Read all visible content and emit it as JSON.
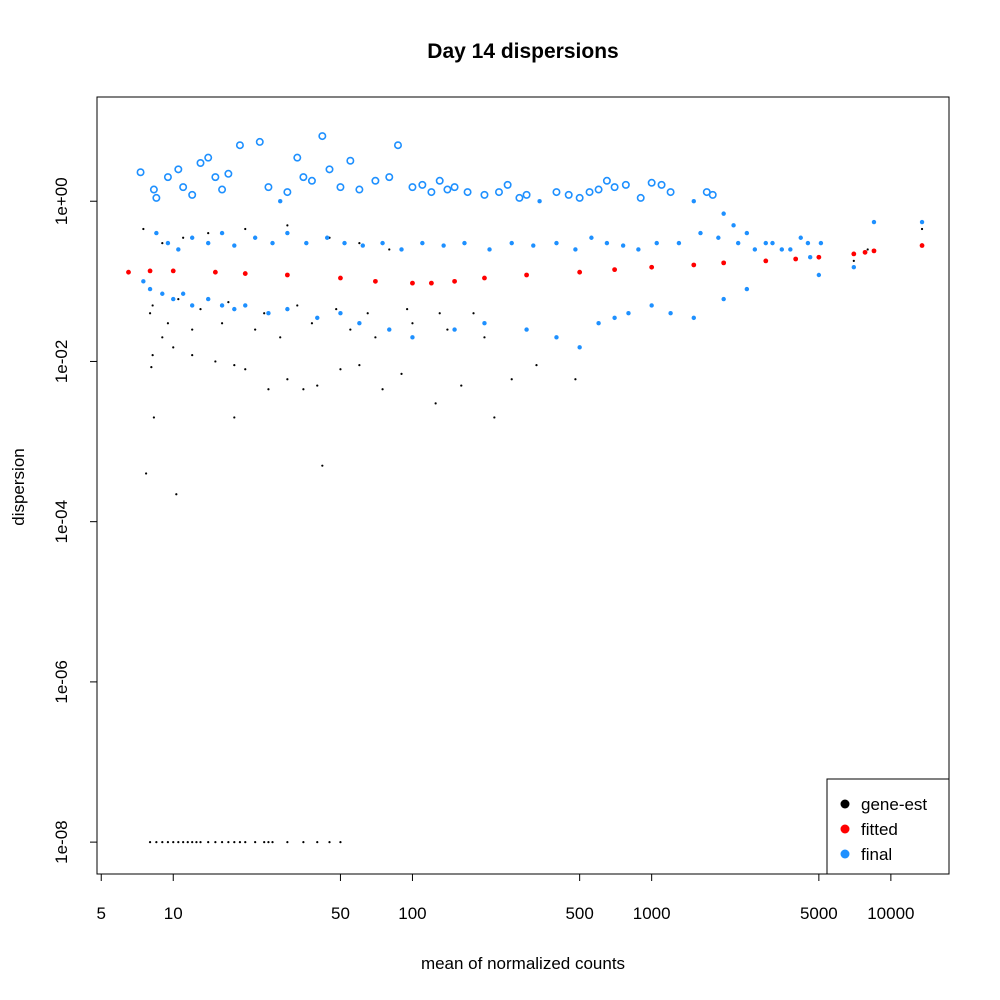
{
  "chart_data": {
    "type": "scatter",
    "title": "Day 14 dispersions",
    "xlabel": "mean of normalized counts",
    "ylabel": "dispersion",
    "x_scale": "log",
    "y_scale": "log",
    "xlim": [
      4.8,
      17500
    ],
    "ylim": [
      4e-09,
      20
    ],
    "x_ticks": [
      {
        "value": 5,
        "label": "5"
      },
      {
        "value": 10,
        "label": "10"
      },
      {
        "value": 50,
        "label": "50"
      },
      {
        "value": 100,
        "label": "100"
      },
      {
        "value": 500,
        "label": "500"
      },
      {
        "value": 1000,
        "label": "1000"
      },
      {
        "value": 5000,
        "label": "5000"
      },
      {
        "value": 10000,
        "label": "10000"
      }
    ],
    "y_ticks": [
      {
        "value": 1e-08,
        "label": "1e-08"
      },
      {
        "value": 1e-06,
        "label": "1e-06"
      },
      {
        "value": 0.0001,
        "label": "1e-04"
      },
      {
        "value": 0.01,
        "label": "1e-02"
      },
      {
        "value": 1,
        "label": "1e+00"
      }
    ],
    "legend": {
      "position": "bottom-right",
      "entries": [
        {
          "label": "gene-est",
          "color": "#000000"
        },
        {
          "label": "fitted",
          "color": "#ff0000"
        },
        {
          "label": "final",
          "color": "#1e90ff"
        }
      ]
    },
    "grid": false,
    "series": [
      {
        "name": "gene-est",
        "color": "#000000",
        "points": [
          [
            7.5,
            0.45
          ],
          [
            8.0,
            0.04
          ],
          [
            8.1,
            0.0085
          ],
          [
            8.3,
            0.002
          ],
          [
            8.2,
            0.012
          ],
          [
            9,
            0.02
          ],
          [
            10,
            0.015
          ],
          [
            12,
            0.012
          ],
          [
            15,
            0.01
          ],
          [
            18,
            0.009
          ],
          [
            20,
            0.008
          ],
          [
            25,
            0.0045
          ],
          [
            30,
            0.006
          ],
          [
            35,
            0.0045
          ],
          [
            40,
            0.005
          ],
          [
            50,
            0.008
          ],
          [
            60,
            0.009
          ],
          [
            75,
            0.0045
          ],
          [
            90,
            0.007
          ],
          [
            125,
            0.003
          ],
          [
            160,
            0.005
          ],
          [
            220,
            0.002
          ],
          [
            260,
            0.006
          ],
          [
            330,
            0.009
          ],
          [
            480,
            0.006
          ],
          [
            18,
            0.002
          ],
          [
            7.7,
            0.0004
          ],
          [
            10.3,
            0.00022
          ],
          [
            42,
            0.0005
          ],
          [
            9,
            0.3
          ],
          [
            11,
            0.35
          ],
          [
            14,
            0.4
          ],
          [
            20,
            0.45
          ],
          [
            30,
            0.5
          ],
          [
            45,
            0.35
          ],
          [
            60,
            0.3
          ],
          [
            80,
            0.25
          ],
          [
            9.5,
            0.03
          ],
          [
            12,
            0.025
          ],
          [
            16,
            0.03
          ],
          [
            22,
            0.025
          ],
          [
            28,
            0.02
          ],
          [
            38,
            0.03
          ],
          [
            55,
            0.025
          ],
          [
            70,
            0.02
          ],
          [
            100,
            0.03
          ],
          [
            140,
            0.025
          ],
          [
            200,
            0.02
          ],
          [
            300,
            0.025
          ],
          [
            8.2,
            0.05
          ],
          [
            10.5,
            0.06
          ],
          [
            13,
            0.045
          ],
          [
            17,
            0.055
          ],
          [
            24,
            0.04
          ],
          [
            33,
            0.05
          ],
          [
            48,
            0.045
          ],
          [
            65,
            0.04
          ],
          [
            95,
            0.045
          ],
          [
            130,
            0.04
          ],
          [
            180,
            0.04
          ],
          [
            13500,
            0.45
          ],
          [
            8000,
            0.25
          ],
          [
            7000,
            0.18
          ],
          [
            8,
            1e-08
          ],
          [
            8.5,
            1e-08
          ],
          [
            9,
            1e-08
          ],
          [
            9.5,
            1e-08
          ],
          [
            10,
            1e-08
          ],
          [
            10.5,
            1e-08
          ],
          [
            11,
            1e-08
          ],
          [
            11.5,
            1e-08
          ],
          [
            12,
            1e-08
          ],
          [
            12.5,
            1e-08
          ],
          [
            13,
            1e-08
          ],
          [
            14,
            1e-08
          ],
          [
            15,
            1e-08
          ],
          [
            16,
            1e-08
          ],
          [
            17,
            1e-08
          ],
          [
            18,
            1e-08
          ],
          [
            19,
            1e-08
          ],
          [
            20,
            1e-08
          ],
          [
            22,
            1e-08
          ],
          [
            24,
            1e-08
          ],
          [
            25,
            1e-08
          ],
          [
            26,
            1e-08
          ],
          [
            30,
            1e-08
          ],
          [
            35,
            1e-08
          ],
          [
            40,
            1e-08
          ],
          [
            45,
            1e-08
          ],
          [
            50,
            1e-08
          ]
        ]
      },
      {
        "name": "fitted",
        "color": "#ff0000",
        "points": [
          [
            6.5,
            0.13
          ],
          [
            8,
            0.135
          ],
          [
            10,
            0.135
          ],
          [
            15,
            0.13
          ],
          [
            20,
            0.125
          ],
          [
            30,
            0.12
          ],
          [
            50,
            0.11
          ],
          [
            70,
            0.1
          ],
          [
            100,
            0.095
          ],
          [
            120,
            0.095
          ],
          [
            150,
            0.1
          ],
          [
            200,
            0.11
          ],
          [
            300,
            0.12
          ],
          [
            500,
            0.13
          ],
          [
            700,
            0.14
          ],
          [
            1000,
            0.15
          ],
          [
            1500,
            0.16
          ],
          [
            2000,
            0.17
          ],
          [
            3000,
            0.18
          ],
          [
            4000,
            0.19
          ],
          [
            5000,
            0.2
          ],
          [
            7000,
            0.22
          ],
          [
            7800,
            0.23
          ],
          [
            8500,
            0.24
          ],
          [
            13500,
            0.28
          ]
        ]
      },
      {
        "name": "final",
        "color": "#1e90ff",
        "points": [
          [
            7.3,
            2.3
          ],
          [
            8.3,
            1.4
          ],
          [
            8.5,
            1.1
          ],
          [
            9.5,
            2.0
          ],
          [
            10.5,
            2.5
          ],
          [
            11,
            1.5
          ],
          [
            12,
            1.2
          ],
          [
            13,
            3.0
          ],
          [
            14,
            3.5
          ],
          [
            15,
            2.0
          ],
          [
            16,
            1.4
          ],
          [
            17,
            2.2
          ],
          [
            19,
            5.0
          ],
          [
            23,
            5.5
          ],
          [
            25,
            1.5
          ],
          [
            28,
            1.0
          ],
          [
            30,
            1.3
          ],
          [
            33,
            3.5
          ],
          [
            35,
            2.0
          ],
          [
            38,
            1.8
          ],
          [
            42,
            6.5
          ],
          [
            45,
            2.5
          ],
          [
            50,
            1.5
          ],
          [
            55,
            3.2
          ],
          [
            60,
            1.4
          ],
          [
            70,
            1.8
          ],
          [
            80,
            2.0
          ],
          [
            87,
            5.0
          ],
          [
            100,
            1.5
          ],
          [
            110,
            1.6
          ],
          [
            120,
            1.3
          ],
          [
            130,
            1.8
          ],
          [
            140,
            1.4
          ],
          [
            150,
            1.5
          ],
          [
            170,
            1.3
          ],
          [
            200,
            1.2
          ],
          [
            230,
            1.3
          ],
          [
            250,
            1.6
          ],
          [
            280,
            1.1
          ],
          [
            300,
            1.2
          ],
          [
            340,
            1.0
          ],
          [
            400,
            1.3
          ],
          [
            450,
            1.2
          ],
          [
            500,
            1.1
          ],
          [
            550,
            1.3
          ],
          [
            600,
            1.4
          ],
          [
            650,
            1.8
          ],
          [
            700,
            1.5
          ],
          [
            780,
            1.6
          ],
          [
            900,
            1.1
          ],
          [
            1000,
            1.7
          ],
          [
            1100,
            1.6
          ],
          [
            1200,
            1.3
          ],
          [
            1500,
            1.0
          ],
          [
            1700,
            1.3
          ],
          [
            1800,
            1.2
          ],
          [
            2000,
            0.7
          ],
          [
            2200,
            0.5
          ],
          [
            2500,
            0.4
          ],
          [
            3000,
            0.3
          ],
          [
            3500,
            0.25
          ],
          [
            4200,
            0.35
          ],
          [
            4600,
            0.2
          ],
          [
            5000,
            0.12
          ],
          [
            5100,
            0.3
          ],
          [
            7000,
            0.15
          ],
          [
            8500,
            0.55
          ],
          [
            13500,
            0.55
          ],
          [
            7.5,
            0.1
          ],
          [
            8,
            0.08
          ],
          [
            9,
            0.07
          ],
          [
            10,
            0.06
          ],
          [
            11,
            0.07
          ],
          [
            12,
            0.05
          ],
          [
            14,
            0.06
          ],
          [
            16,
            0.05
          ],
          [
            18,
            0.045
          ],
          [
            20,
            0.05
          ],
          [
            25,
            0.04
          ],
          [
            30,
            0.045
          ],
          [
            40,
            0.035
          ],
          [
            50,
            0.04
          ],
          [
            60,
            0.03
          ],
          [
            80,
            0.025
          ],
          [
            100,
            0.02
          ],
          [
            150,
            0.025
          ],
          [
            200,
            0.03
          ],
          [
            300,
            0.025
          ],
          [
            400,
            0.02
          ],
          [
            500,
            0.015
          ],
          [
            600,
            0.03
          ],
          [
            700,
            0.035
          ],
          [
            800,
            0.04
          ],
          [
            1000,
            0.05
          ],
          [
            1200,
            0.04
          ],
          [
            1500,
            0.035
          ],
          [
            2000,
            0.06
          ],
          [
            2500,
            0.08
          ],
          [
            8.5,
            0.4
          ],
          [
            9.5,
            0.3
          ],
          [
            10.5,
            0.25
          ],
          [
            12,
            0.35
          ],
          [
            14,
            0.3
          ],
          [
            16,
            0.4
          ],
          [
            18,
            0.28
          ],
          [
            22,
            0.35
          ],
          [
            26,
            0.3
          ],
          [
            30,
            0.4
          ],
          [
            36,
            0.3
          ],
          [
            44,
            0.35
          ],
          [
            52,
            0.3
          ],
          [
            62,
            0.28
          ],
          [
            75,
            0.3
          ],
          [
            90,
            0.25
          ],
          [
            110,
            0.3
          ],
          [
            135,
            0.28
          ],
          [
            165,
            0.3
          ],
          [
            210,
            0.25
          ],
          [
            260,
            0.3
          ],
          [
            320,
            0.28
          ],
          [
            400,
            0.3
          ],
          [
            480,
            0.25
          ],
          [
            560,
            0.35
          ],
          [
            650,
            0.3
          ],
          [
            760,
            0.28
          ],
          [
            880,
            0.25
          ],
          [
            1050,
            0.3
          ],
          [
            1300,
            0.3
          ],
          [
            1600,
            0.4
          ],
          [
            1900,
            0.35
          ],
          [
            2300,
            0.3
          ],
          [
            2700,
            0.25
          ],
          [
            3200,
            0.3
          ],
          [
            3800,
            0.25
          ],
          [
            4500,
            0.3
          ]
        ]
      }
    ]
  }
}
